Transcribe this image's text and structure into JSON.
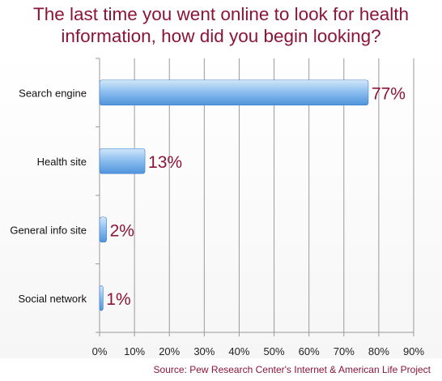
{
  "title_lines": [
    "The last time you went online to look for health",
    "information, how did you begin looking?"
  ],
  "source": "Source: Pew Research Center's Internet & American Life Project",
  "colors": {
    "title": "#8b1538",
    "bar_light": "#bcd9f6",
    "bar_dark": "#5b9fe2",
    "bar_stroke": "#3f7fc8",
    "grid": "#9a9a9a"
  },
  "chart_data": {
    "type": "bar",
    "orientation": "horizontal",
    "categories": [
      "Search engine",
      "Health site",
      "General info site",
      "Social network"
    ],
    "values": [
      77,
      13,
      2,
      1
    ],
    "data_labels": [
      "77%",
      "13%",
      "2%",
      "1%"
    ],
    "x_ticks": [
      "0%",
      "10%",
      "20%",
      "30%",
      "40%",
      "50%",
      "60%",
      "70%",
      "80%",
      "90%"
    ],
    "xlim": [
      0,
      90
    ],
    "grid": true,
    "legend": false
  }
}
